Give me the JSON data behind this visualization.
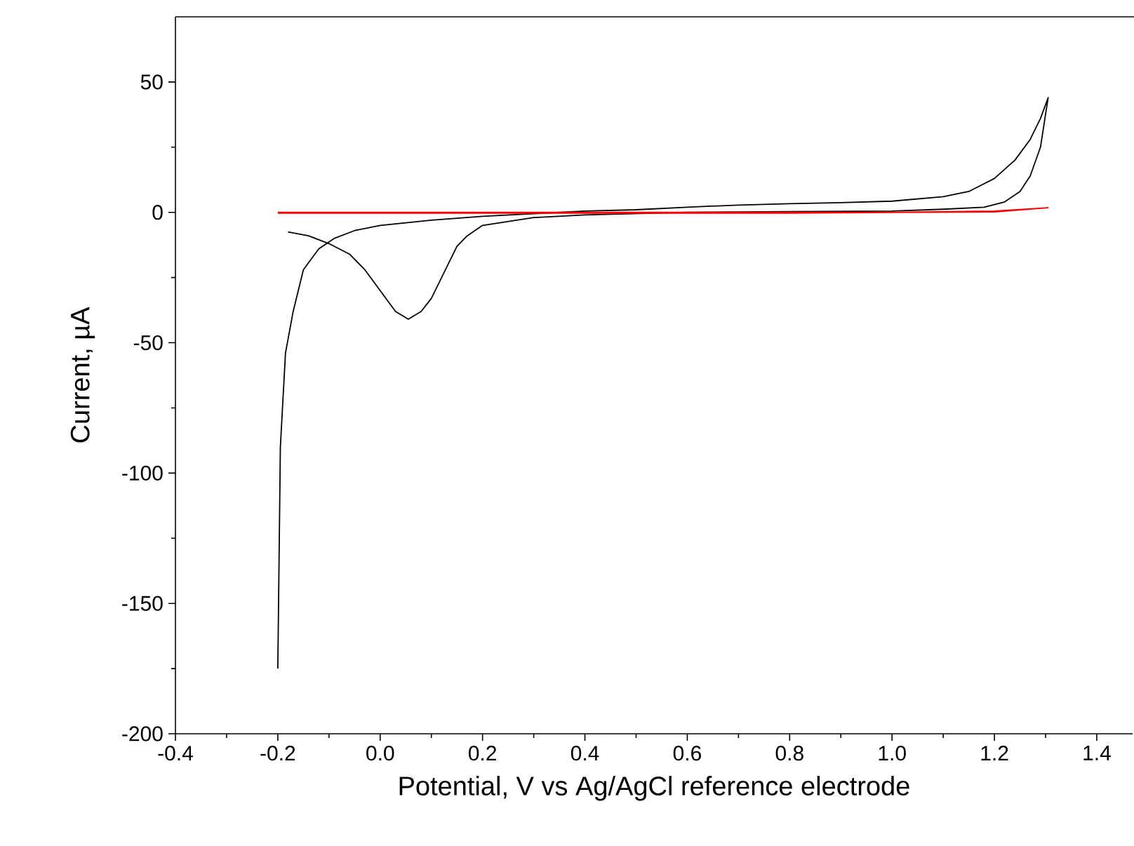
{
  "chart_data": {
    "type": "line",
    "xlabel": "Potential, V vs Ag/AgCl reference electrode",
    "ylabel": "Current, µA",
    "xlim": [
      -0.4,
      1.47
    ],
    "ylim": [
      -200,
      75
    ],
    "xticks": [
      -0.4,
      -0.2,
      {
        "value": 0.0,
        "label": "0.0"
      },
      0.2,
      0.4,
      0.6,
      0.8,
      {
        "value": 1.0,
        "label": "1.0"
      },
      1.2,
      1.4
    ],
    "yticks": [
      -200,
      -150,
      -100,
      -50,
      0,
      50
    ],
    "marker": "none",
    "line_style": "solid",
    "series": [
      {
        "color": "#000000",
        "x": [
          -0.2,
          -0.195,
          -0.185,
          -0.17,
          -0.15,
          -0.12,
          -0.09,
          -0.05,
          0.0,
          0.1,
          0.2,
          0.3,
          0.4,
          0.5,
          0.6,
          0.7,
          0.8,
          0.9,
          1.0,
          1.1,
          1.15,
          1.2,
          1.24,
          1.27,
          1.29,
          1.305,
          1.29,
          1.27,
          1.25,
          1.22,
          1.18,
          1.1,
          1.0,
          0.8,
          0.6,
          0.4,
          0.3,
          0.2,
          0.17,
          0.15,
          0.12,
          0.1,
          0.08,
          0.055,
          0.03,
          0.0,
          -0.03,
          -0.06,
          -0.1,
          -0.14,
          -0.18
        ],
        "values": [
          -175,
          -90,
          -54,
          -38,
          -22,
          -14,
          -10,
          -7,
          -5,
          -3,
          -1.5,
          -0.5,
          0.5,
          1,
          2,
          2.8,
          3.3,
          3.7,
          4.3,
          6,
          8,
          13,
          20,
          28,
          36,
          44,
          25,
          14,
          8,
          4,
          2,
          1.2,
          0.5,
          0.3,
          0,
          -1,
          -2,
          -5,
          -9,
          -13,
          -25,
          -33,
          -38,
          -41,
          -38,
          -30,
          -22,
          -16,
          -12,
          -9,
          -7.5
        ]
      },
      {
        "color": "#ff0000",
        "x": [
          -0.2,
          0.4,
          1.0,
          1.2,
          1.305,
          1.2,
          0.8,
          0.2,
          -0.2
        ],
        "values": [
          0,
          0,
          0,
          0.5,
          1.8,
          0.2,
          -0.3,
          -0.3,
          -0.3
        ]
      }
    ]
  }
}
